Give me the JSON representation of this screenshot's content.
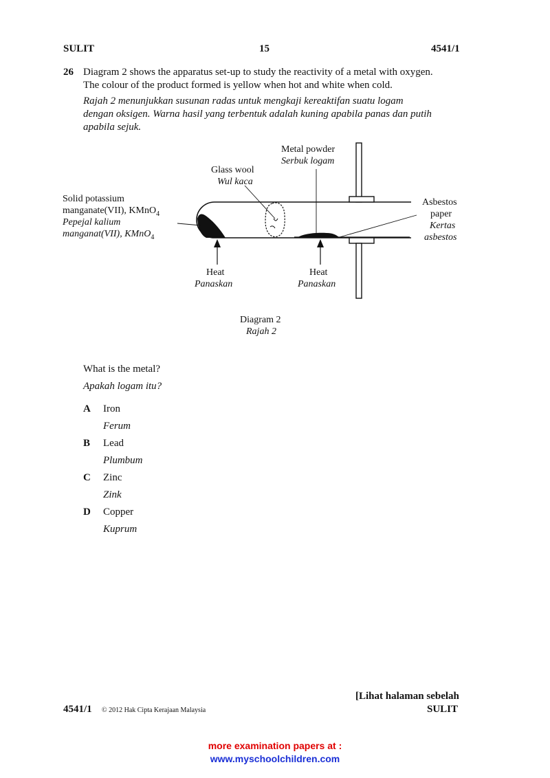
{
  "header": {
    "left": "SULIT",
    "page": "15",
    "code": "4541/1"
  },
  "question": {
    "number": "26",
    "en_line1": "Diagram 2 shows the apparatus set-up to study the reactivity of a metal with oxygen.",
    "en_line2": "The colour of the product formed is yellow when hot and white when cold.",
    "ms_line1": "Rajah 2 menunjukkan susunan radas untuk mengkaji kereaktifan suatu logam",
    "ms_line2": "dengan oksigen. Warna hasil yang terbentuk adalah kuning apabila panas dan putih",
    "ms_line3": "apabila sejuk."
  },
  "diagram": {
    "kmno4_en1": "Solid potassium",
    "kmno4_en2": "manganate(VII), KMnO",
    "kmno4_ms1": "Pepejal kalium",
    "kmno4_ms2": "manganat(VII), KMnO",
    "subscript": "4",
    "glass_wool_en": "Glass wool",
    "glass_wool_ms": "Wul kaca",
    "metal_powder_en": "Metal powder",
    "metal_powder_ms": "Serbuk logam",
    "asbestos_en1": "Asbestos",
    "asbestos_en2": "paper",
    "asbestos_ms1": "Kertas",
    "asbestos_ms2": "asbestos",
    "heat_en": "Heat",
    "heat_ms": "Panaskan",
    "caption_en": "Diagram 2",
    "caption_ms": "Rajah 2"
  },
  "prompt": {
    "en": "What is the metal?",
    "ms": "Apakah logam itu?"
  },
  "options": [
    {
      "letter": "A",
      "en": "Iron",
      "ms": "Ferum"
    },
    {
      "letter": "B",
      "en": "Lead",
      "ms": "Plumbum"
    },
    {
      "letter": "C",
      "en": "Zinc",
      "ms": "Zink"
    },
    {
      "letter": "D",
      "en": "Copper",
      "ms": "Kuprum"
    }
  ],
  "footer": {
    "code": "4541/1",
    "copyright": "© 2012 Hak Cipta Kerajaan Malaysia",
    "next_page": "[Lihat halaman sebelah",
    "sulit": "SULIT",
    "promo1": "more examination papers at :",
    "promo2": "www.myschoolchildren.com",
    "promo1_color": "#e00000",
    "promo2_color": "#1a2fd6"
  }
}
